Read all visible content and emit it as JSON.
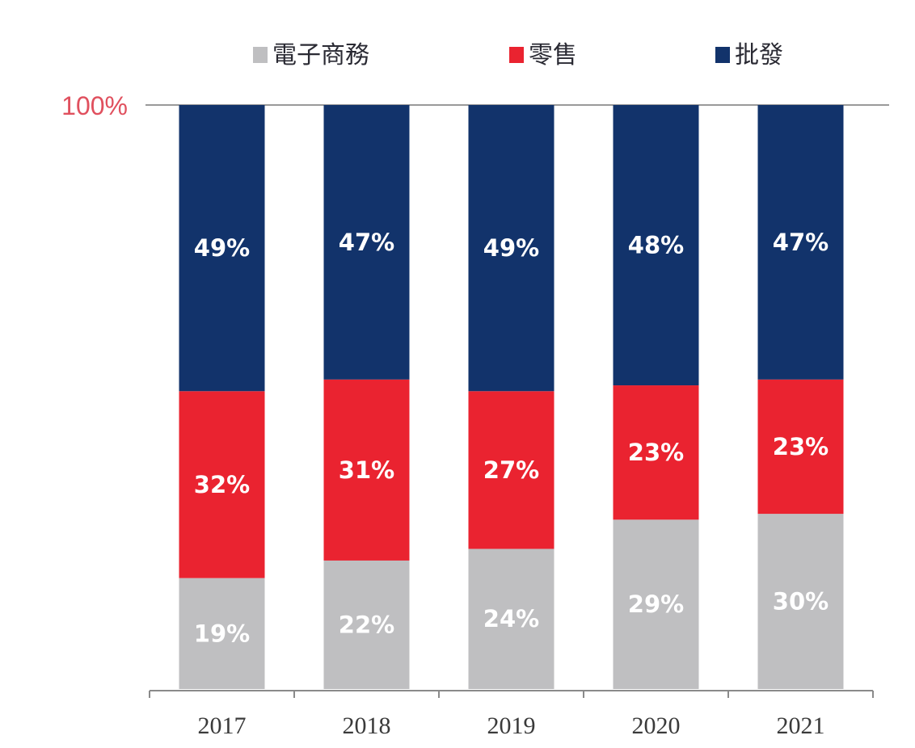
{
  "chart_data": {
    "type": "bar",
    "stacked": true,
    "categories": [
      "2017",
      "2018",
      "2019",
      "2020",
      "2021"
    ],
    "series": [
      {
        "name": "電子商務",
        "values": [
          19,
          22,
          24,
          29,
          30
        ],
        "color": "#bfbfc1"
      },
      {
        "name": "零售",
        "values": [
          32,
          31,
          27,
          23,
          23
        ],
        "color": "#ea2330"
      },
      {
        "name": "批發",
        "values": [
          49,
          47,
          49,
          48,
          47
        ],
        "color": "#12336b"
      }
    ],
    "data_labels": [
      [
        "19%",
        "22%",
        "24%",
        "29%",
        "30%"
      ],
      [
        "32%",
        "31%",
        "27%",
        "23%",
        "23%"
      ],
      [
        "49%",
        "47%",
        "49%",
        "48%",
        "47%"
      ]
    ],
    "ytick_label": "100%",
    "ylim": [
      0,
      100
    ],
    "legend_placement": "top",
    "grid": false
  }
}
